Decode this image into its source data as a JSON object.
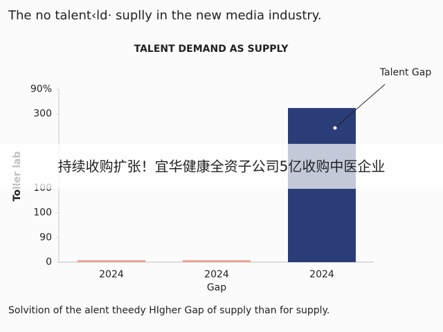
{
  "chart_data": {
    "type": "bar",
    "caption": "The no talent‹ld· suplly in the new media industry.",
    "title": "TALENT DEMAND AS SUPPLY",
    "ylabel": "Toller lab",
    "xlabel": "Gap",
    "annotation": "Talent Gap",
    "footer": "Solvition of the alent theedy HIgher Gap of supply than for supply.",
    "overlay_text": "持续收购扩张！宜华健康全资子公司5亿收购中医企业",
    "categories": [
      "2024",
      "2024",
      "2024"
    ],
    "values": [
      4,
      4,
      312
    ],
    "colors": [
      "#eba394",
      "#eba394",
      "#2a3d78"
    ],
    "ylim": [
      0,
      350
    ],
    "yticks": [
      0,
      {
        "value": 50,
        "label": "90"
      },
      100,
      {
        "value": 150,
        "label": "100"
      },
      300,
      {
        "value": 350,
        "label": "90%"
      }
    ],
    "grid": false
  }
}
